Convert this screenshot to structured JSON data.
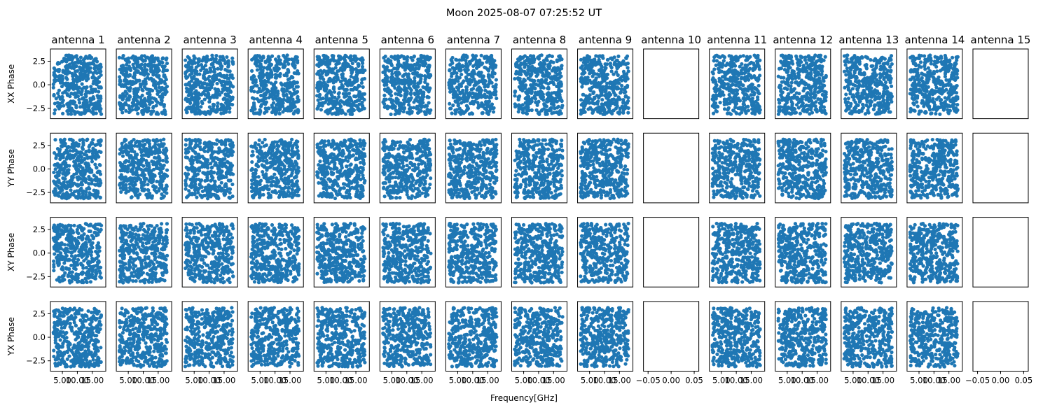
{
  "chart_data": {
    "type": "scatter",
    "title": "Moon 2025-08-07 07:25:52 UT",
    "xlabel": "Frequency[GHz]",
    "antennas": [
      "antenna 1",
      "antenna 2",
      "antenna 3",
      "antenna 4",
      "antenna 5",
      "antenna 6",
      "antenna 7",
      "antenna 8",
      "antenna 9",
      "antenna 10",
      "antenna 11",
      "antenna 12",
      "antenna 13",
      "antenna 14",
      "antenna 15"
    ],
    "empty_antennas": [
      "antenna 10",
      "antenna 15"
    ],
    "rows": [
      {
        "ylabel": "XX Phase"
      },
      {
        "ylabel": "YY Phase"
      },
      {
        "ylabel": "XY Phase"
      },
      {
        "ylabel": "YX Phase"
      }
    ],
    "ylim": [
      -3.6,
      3.8
    ],
    "yticks": [
      -2.5,
      0.0,
      2.5
    ],
    "ytick_labels": [
      "−2.5",
      "0.0",
      "2.5"
    ],
    "data_xlim": [
      1.0,
      19.5
    ],
    "data_xticks": [
      5.0,
      10.0,
      15.0
    ],
    "data_xtick_labels": [
      "5.00",
      "10.00",
      "15.00"
    ],
    "empty_xlim": [
      -0.06,
      0.06
    ],
    "empty_xticks": [
      -0.05,
      0.0,
      0.05
    ],
    "empty_xtick_labels": [
      "−0.05",
      "0.00",
      "0.05"
    ],
    "points_per_panel": 400,
    "frequency_range": [
      2.0,
      18.0
    ],
    "phase_range": [
      -3.14159,
      3.14159
    ],
    "series_color": "#1f77b4"
  }
}
